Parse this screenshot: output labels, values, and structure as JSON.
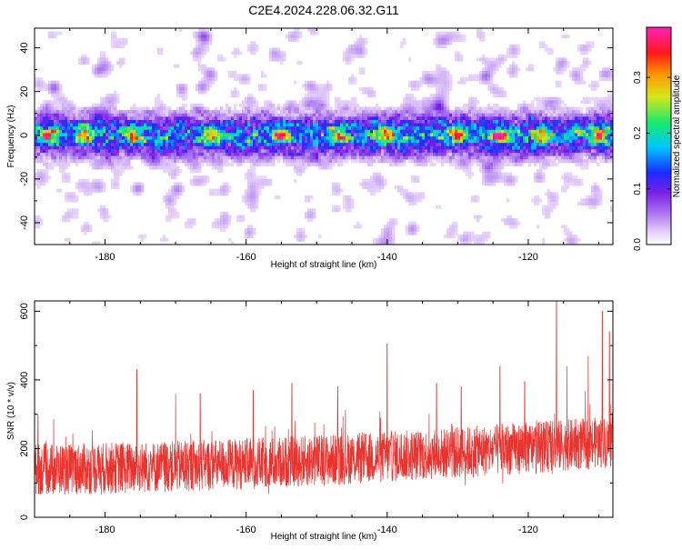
{
  "title": "C2E4.2024.228.06.32.G11",
  "colors": {
    "snr_line": "#e8332f",
    "frame": "#000000",
    "background": "#ffffff"
  },
  "colormap": [
    "#ffffff",
    "#e3cdf9",
    "#a066ee",
    "#7a1fe6",
    "#1a2bff",
    "#00c8ff",
    "#19e96b",
    "#d8e51c",
    "#ff9a00",
    "#ff1a1a",
    "#ff1fbb"
  ],
  "chart_data": [
    {
      "type": "heatmap",
      "panel": "spectrogram",
      "xlabel": "Height of straight line (km)",
      "ylabel": "Frequency (Hz)",
      "xlim": [
        -190,
        -108
      ],
      "ylim": [
        -50,
        49
      ],
      "xticks": [
        -180,
        -160,
        -140,
        -120
      ],
      "yticks": [
        -40,
        -20,
        0,
        20,
        40
      ],
      "grid": false,
      "colorbar": {
        "label": "Normalized spectral amplitude",
        "range": [
          0.0,
          0.39
        ],
        "ticks": [
          0.0,
          0.1,
          0.2,
          0.3
        ],
        "tick_labels": [
          "0.0",
          "0.1",
          "0.2",
          "0.3"
        ]
      },
      "description_of_values": {
        "signal_band_center_hz": 0,
        "signal_band_halfwidth_hz": 11,
        "peak_amplitude": 0.35,
        "background_amplitude": 0.05,
        "notable_peaks_km": [
          -188,
          -183,
          -176,
          -165,
          -155,
          -147,
          -140,
          -130,
          -124,
          -118,
          -110
        ]
      }
    },
    {
      "type": "line",
      "panel": "snr",
      "xlabel": "Height of straight line (km)",
      "ylabel": "SNR (10 * v/v)",
      "xlim": [
        -190,
        -108
      ],
      "ylim": [
        0,
        630
      ],
      "xticks": [
        -180,
        -160,
        -140,
        -120
      ],
      "yticks": [
        0,
        200,
        400,
        600
      ],
      "grid": false,
      "series": [
        {
          "baseline_start": 140,
          "baseline_end": 220,
          "typical_spread": 75,
          "max_spikes": [
            {
              "x": -189.5,
              "y": 300
            },
            {
              "x": -175.5,
              "y": 430
            },
            {
              "x": -170.0,
              "y": 360
            },
            {
              "x": -166.5,
              "y": 360
            },
            {
              "x": -159.0,
              "y": 370
            },
            {
              "x": -153.5,
              "y": 390
            },
            {
              "x": -147.0,
              "y": 380
            },
            {
              "x": -140.0,
              "y": 505
            },
            {
              "x": -133.0,
              "y": 390
            },
            {
              "x": -129.5,
              "y": 380
            },
            {
              "x": -124.0,
              "y": 440
            },
            {
              "x": -120.5,
              "y": 395
            },
            {
              "x": -116.0,
              "y": 630
            },
            {
              "x": -114.5,
              "y": 440
            },
            {
              "x": -111.5,
              "y": 470
            },
            {
              "x": -109.5,
              "y": 600
            },
            {
              "x": -108.5,
              "y": 540
            }
          ]
        }
      ]
    }
  ]
}
